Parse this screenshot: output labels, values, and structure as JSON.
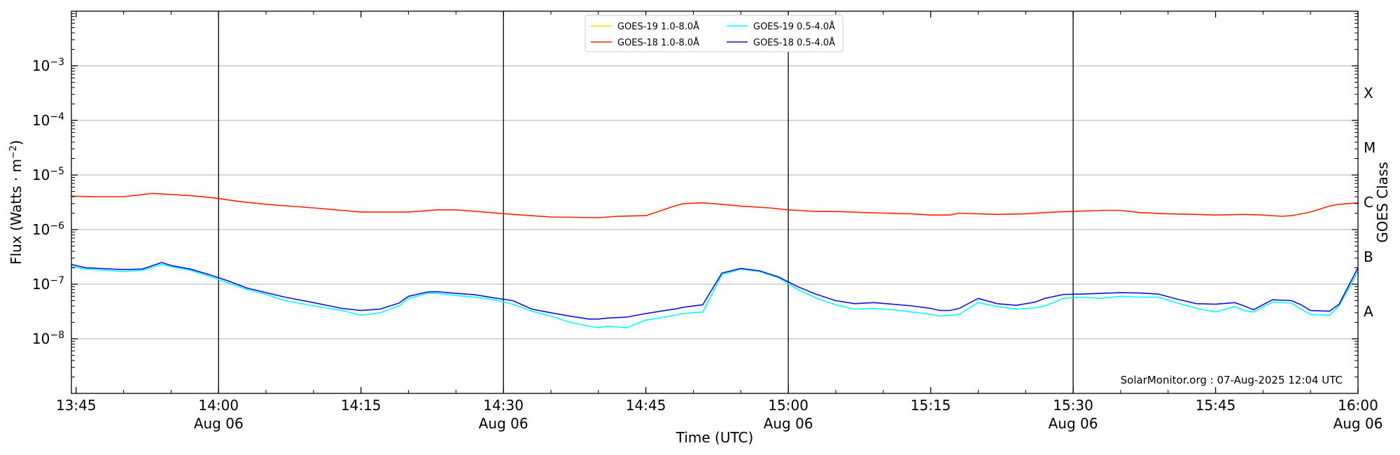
{
  "chart_data": {
    "type": "line",
    "xlabel": "Time (UTC)",
    "ylabel_main": "Flux (Watts · m",
    "ylabel_exp": "−2",
    "ylabel_close": ")",
    "y2label": "GOES Class",
    "yscale": "log",
    "ylim": [
      1e-09,
      0.01
    ],
    "xlim_min": [
      -0.5,
      135
    ],
    "x_ticks": [
      {
        "m": 0,
        "time": "13:45",
        "date": ""
      },
      {
        "m": 15,
        "time": "14:00",
        "date": "Aug 06"
      },
      {
        "m": 30,
        "time": "14:15",
        "date": ""
      },
      {
        "m": 45,
        "time": "14:30",
        "date": "Aug 06"
      },
      {
        "m": 60,
        "time": "14:45",
        "date": ""
      },
      {
        "m": 75,
        "time": "15:00",
        "date": "Aug 06"
      },
      {
        "m": 90,
        "time": "15:15",
        "date": ""
      },
      {
        "m": 105,
        "time": "15:30",
        "date": "Aug 06"
      },
      {
        "m": 120,
        "time": "15:45",
        "date": ""
      },
      {
        "m": 135,
        "time": "16:00",
        "date": "Aug 06"
      }
    ],
    "y_ticks": [
      {
        "exp": -8,
        "base": "10",
        "sup": "−8"
      },
      {
        "exp": -7,
        "base": "10",
        "sup": "−7"
      },
      {
        "exp": -6,
        "base": "10",
        "sup": "−6"
      },
      {
        "exp": -5,
        "base": "10",
        "sup": "−5"
      },
      {
        "exp": -4,
        "base": "10",
        "sup": "−4"
      },
      {
        "exp": -3,
        "base": "10",
        "sup": "−3"
      }
    ],
    "goes_classes": [
      {
        "label": "A",
        "exp": -8
      },
      {
        "label": "B",
        "exp": -7
      },
      {
        "label": "C",
        "exp": -6
      },
      {
        "label": "M",
        "exp": -5
      },
      {
        "label": "X",
        "exp": -4
      }
    ],
    "vlines_m": [
      15,
      45,
      75,
      105
    ],
    "grid": true,
    "legend_position": "top-center",
    "series": [
      {
        "name": "GOES-19 1.0-8.0Å",
        "color": "#ffd700",
        "x": [],
        "y": []
      },
      {
        "name": "GOES-18 1.0-8.0Å",
        "color": "#ff2200",
        "x": [
          -0.5,
          2,
          5,
          8,
          12,
          14,
          15,
          17,
          20,
          25,
          30,
          35,
          38,
          40,
          43,
          46,
          50,
          55,
          57,
          60,
          63,
          64,
          66,
          68,
          70,
          73,
          75,
          78,
          80,
          83,
          85,
          88,
          90,
          92,
          93,
          95,
          97,
          100,
          103,
          105,
          108,
          110,
          112,
          115,
          118,
          120,
          123,
          125,
          127,
          128,
          130,
          132,
          133,
          135
        ],
        "y": [
          4.1e-06,
          4e-06,
          4e-06,
          4.6e-06,
          4.2e-06,
          3.9e-06,
          3.7e-06,
          3.3e-06,
          2.9e-06,
          2.5e-06,
          2.1e-06,
          2.1e-06,
          2.3e-06,
          2.3e-06,
          2.1e-06,
          1.9e-06,
          1.7e-06,
          1.65e-06,
          1.75e-06,
          1.8e-06,
          2.7e-06,
          3e-06,
          3.1e-06,
          2.9e-06,
          2.7e-06,
          2.5e-06,
          2.3e-06,
          2.15e-06,
          2.15e-06,
          2.05e-06,
          2e-06,
          1.95e-06,
          1.85e-06,
          1.85e-06,
          2e-06,
          1.95e-06,
          1.9e-06,
          1.95e-06,
          2.1e-06,
          2.15e-06,
          2.25e-06,
          2.25e-06,
          2.05e-06,
          1.95e-06,
          1.9e-06,
          1.85e-06,
          1.9e-06,
          1.85e-06,
          1.75e-06,
          1.8e-06,
          2.1e-06,
          2.7e-06,
          2.9e-06,
          3.1e-06
        ]
      },
      {
        "name": "GOES-19 0.5-4.0Å",
        "color": "#00ffff",
        "x": [
          -0.5,
          1,
          5,
          7,
          9,
          10,
          12,
          14,
          16,
          18,
          20,
          22,
          25,
          28,
          30,
          32,
          34,
          35,
          37,
          38,
          40,
          42,
          44,
          46,
          48,
          50,
          52,
          54,
          55,
          56,
          58,
          60,
          62,
          63,
          64,
          66,
          68,
          70,
          72,
          74,
          76,
          78,
          80,
          82,
          84,
          86,
          88,
          90,
          91,
          92,
          93,
          95,
          97,
          99,
          101,
          102,
          104,
          106,
          108,
          110,
          112,
          114,
          116,
          118,
          120,
          122,
          123,
          124,
          126,
          128,
          129,
          130,
          132,
          133,
          135
        ],
        "y": [
          2.1e-07,
          1.9e-07,
          1.7e-07,
          1.8e-07,
          2.3e-07,
          2.1e-07,
          1.8e-07,
          1.4e-07,
          1.05e-07,
          8e-08,
          6.5e-08,
          5e-08,
          4e-08,
          3.3e-08,
          2.7e-08,
          3e-08,
          4e-08,
          5.5e-08,
          6.8e-08,
          6.8e-08,
          6.2e-08,
          5.8e-08,
          5.2e-08,
          4.3e-08,
          3.2e-08,
          2.6e-08,
          2e-08,
          1.7e-08,
          1.6e-08,
          1.7e-08,
          1.6e-08,
          2.2e-08,
          2.5e-08,
          2.7e-08,
          2.9e-08,
          3.1e-08,
          1.5e-07,
          1.9e-07,
          1.7e-07,
          1.3e-07,
          8e-08,
          5.5e-08,
          4.2e-08,
          3.5e-08,
          3.6e-08,
          3.4e-08,
          3.1e-08,
          2.8e-08,
          2.6e-08,
          2.7e-08,
          2.8e-08,
          4.6e-08,
          3.9e-08,
          3.5e-08,
          3.7e-08,
          4e-08,
          5.5e-08,
          5.8e-08,
          5.5e-08,
          6e-08,
          5.8e-08,
          5.8e-08,
          4.5e-08,
          3.6e-08,
          3.1e-08,
          3.9e-08,
          3.3e-08,
          3.1e-08,
          4.7e-08,
          4.5e-08,
          3.5e-08,
          2.8e-08,
          2.7e-08,
          4e-08,
          1.7e-07
        ]
      },
      {
        "name": "GOES-18 0.5-4.0Å",
        "color": "#1010e0",
        "x": [
          -0.5,
          1,
          5,
          7,
          9,
          10,
          12,
          14,
          16,
          18,
          20,
          22,
          25,
          28,
          30,
          32,
          34,
          35,
          37,
          38,
          40,
          42,
          44,
          46,
          48,
          50,
          52,
          54,
          55,
          56,
          58,
          60,
          62,
          63,
          64,
          66,
          68,
          70,
          72,
          74,
          76,
          78,
          80,
          82,
          84,
          86,
          88,
          90,
          91,
          92,
          93,
          95,
          97,
          99,
          101,
          102,
          104,
          106,
          108,
          110,
          112,
          114,
          116,
          118,
          120,
          122,
          123,
          124,
          126,
          128,
          129,
          130,
          132,
          133,
          135
        ],
        "y": [
          2.3e-07,
          2e-07,
          1.85e-07,
          1.9e-07,
          2.5e-07,
          2.2e-07,
          1.9e-07,
          1.5e-07,
          1.15e-07,
          8.5e-08,
          7e-08,
          5.8e-08,
          4.6e-08,
          3.6e-08,
          3.3e-08,
          3.5e-08,
          4.5e-08,
          6e-08,
          7.2e-08,
          7.3e-08,
          6.8e-08,
          6.4e-08,
          5.6e-08,
          5e-08,
          3.5e-08,
          3e-08,
          2.6e-08,
          2.3e-08,
          2.3e-08,
          2.4e-08,
          2.5e-08,
          2.9e-08,
          3.3e-08,
          3.5e-08,
          3.8e-08,
          4.2e-08,
          1.6e-07,
          1.95e-07,
          1.75e-07,
          1.35e-07,
          9e-08,
          6.5e-08,
          5e-08,
          4.4e-08,
          4.6e-08,
          4.3e-08,
          4e-08,
          3.6e-08,
          3.3e-08,
          3.3e-08,
          3.6e-08,
          5.5e-08,
          4.4e-08,
          4.1e-08,
          4.7e-08,
          5.5e-08,
          6.5e-08,
          6.6e-08,
          6.8e-08,
          7e-08,
          6.9e-08,
          6.6e-08,
          5.3e-08,
          4.4e-08,
          4.3e-08,
          4.6e-08,
          4e-08,
          3.4e-08,
          5.2e-08,
          5e-08,
          4.2e-08,
          3.3e-08,
          3.2e-08,
          4.3e-08,
          2e-07
        ]
      }
    ],
    "credit": "SolarMonitor.org : 07-Aug-2025 12:04 UTC"
  }
}
